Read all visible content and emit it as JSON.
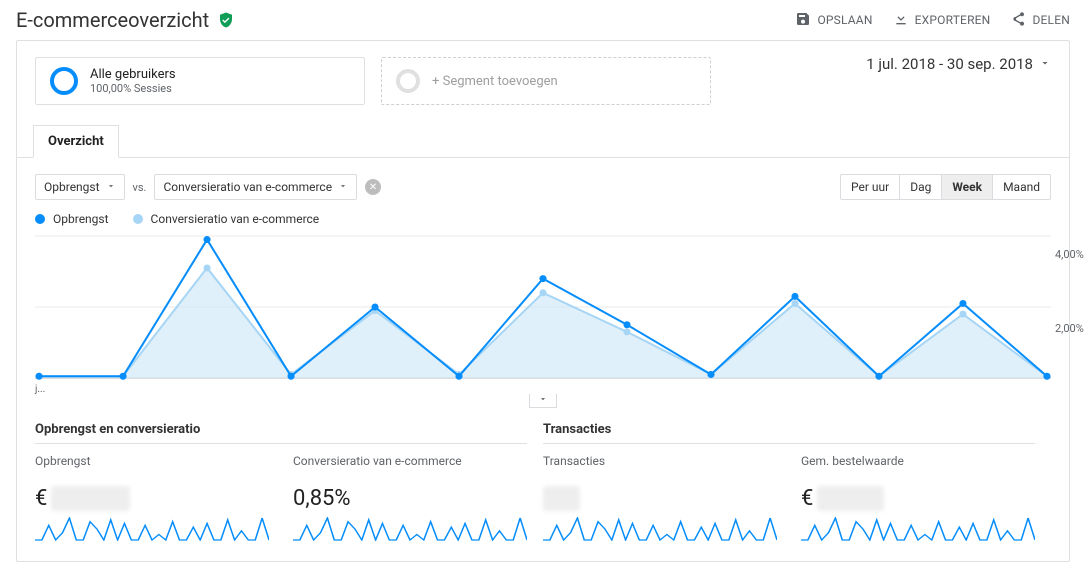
{
  "header": {
    "title": "E-commerceoverzicht",
    "actions": {
      "save": "OPSLAAN",
      "export": "EXPORTEREN",
      "share": "DELEN"
    }
  },
  "segments": {
    "primary": {
      "title": "Alle gebruikers",
      "subtitle": "100,00% Sessies"
    },
    "add_label": "+ Segment toevoegen"
  },
  "date_range": "1 jul. 2018 - 30 sep. 2018",
  "tab": {
    "overview": "Overzicht"
  },
  "metric_selects": {
    "primary": "Opbrengst",
    "vs": "vs.",
    "secondary": "Conversieratio van e-commerce"
  },
  "time_toggle": {
    "hour": "Per uur",
    "day": "Dag",
    "week": "Week",
    "month": "Maand",
    "active": "week"
  },
  "legend": {
    "primary": {
      "label": "Opbrengst",
      "color": "#058dfb"
    },
    "secondary": {
      "label": "Conversieratio van e-commerce",
      "color": "#a6d5f5"
    }
  },
  "chart": {
    "type": "line",
    "y_axis_right": {
      "labels": [
        "4,00%",
        "2,00%"
      ],
      "positions_pct": [
        10,
        55
      ]
    },
    "x_axis_first_label": "j...",
    "colors": {
      "primary": "#058dfb",
      "secondary": "#a6d5f5",
      "fill": "#d3e9f8",
      "grid": "#e8e8e8"
    },
    "point_radius": 3.5,
    "line_width": 2,
    "series_primary": [
      0.05,
      0.05,
      3.9,
      0.05,
      2.0,
      0.05,
      2.8,
      1.5,
      0.1,
      2.3,
      0.05,
      2.1,
      0.05
    ],
    "series_secondary": [
      0.05,
      0.05,
      3.1,
      0.1,
      1.9,
      0.1,
      2.4,
      1.3,
      0.1,
      2.1,
      0.05,
      1.8,
      0.05
    ]
  },
  "sections": {
    "left": {
      "title": "Opbrengst en conversieratio"
    },
    "right": {
      "title": "Transacties"
    }
  },
  "metrics": {
    "opbrengst": {
      "label": "Opbrengst",
      "prefix": "€",
      "value_redacted": true
    },
    "conversie": {
      "label": "Conversieratio van e-commerce",
      "value": "0,85%"
    },
    "transacties": {
      "label": "Transacties",
      "value_redacted": true
    },
    "gem_bestel": {
      "label": "Gem. bestelwaarde",
      "prefix": "€",
      "value_redacted": true
    }
  },
  "sparkline": {
    "color": "#058dfb",
    "values": [
      0,
      0,
      8,
      0,
      4,
      12,
      0,
      0,
      10,
      6,
      0,
      11,
      0,
      9,
      0,
      0,
      8,
      0,
      3,
      0,
      10,
      0,
      0,
      7,
      0,
      9,
      0,
      0,
      11,
      0,
      5,
      0,
      0,
      12,
      0
    ]
  }
}
